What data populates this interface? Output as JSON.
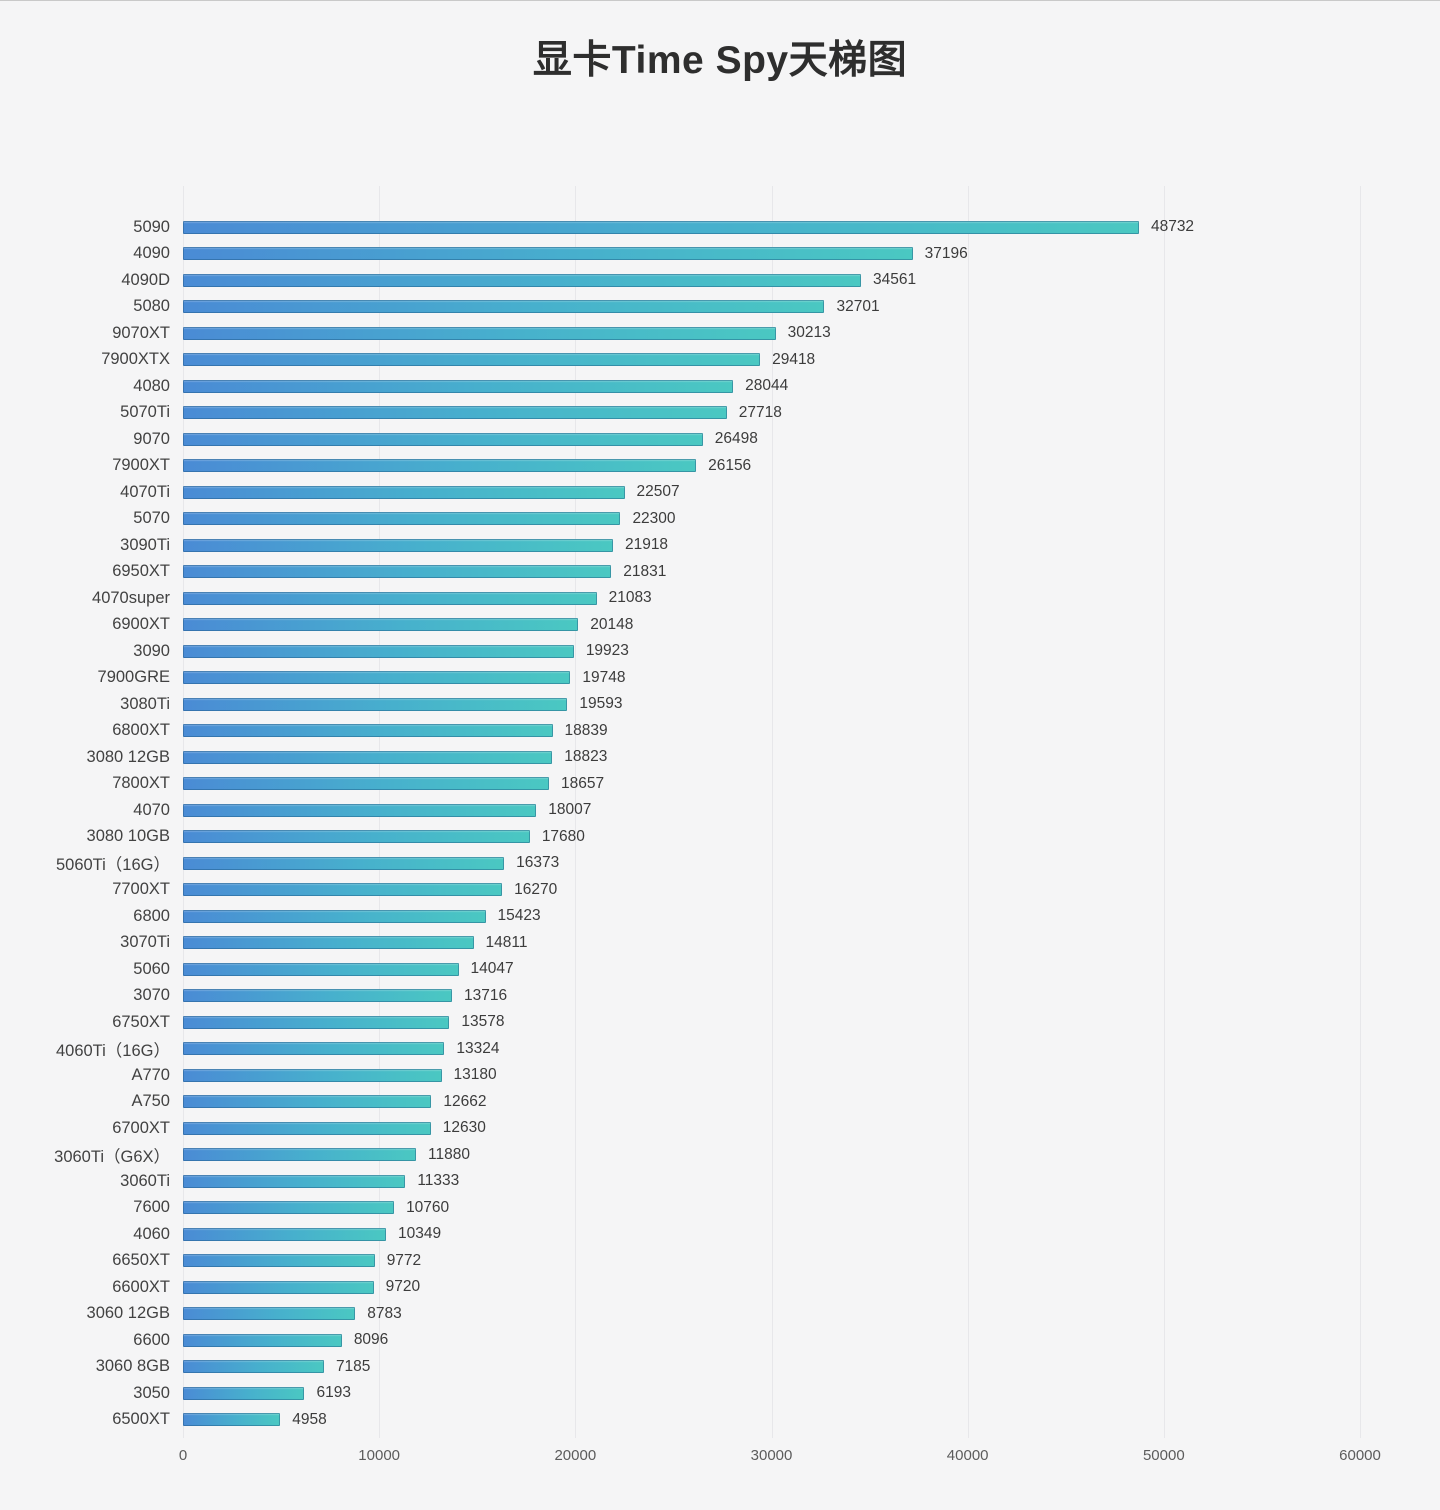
{
  "chart_data": {
    "type": "bar",
    "orientation": "horizontal",
    "title": "显卡Time Spy天梯图",
    "categories": [
      "5090",
      "4090",
      "4090D",
      "5080",
      "9070XT",
      "7900XTX",
      "4080",
      "5070Ti",
      "9070",
      "7900XT",
      "4070Ti",
      "5070",
      "3090Ti",
      "6950XT",
      "4070super",
      "6900XT",
      "3090",
      "7900GRE",
      "3080Ti",
      "6800XT",
      "3080 12GB",
      "7800XT",
      "4070",
      "3080 10GB",
      "5060Ti（16G）",
      "7700XT",
      "6800",
      "3070Ti",
      "5060",
      "3070",
      "6750XT",
      "4060Ti（16G）",
      "A770",
      "A750",
      "6700XT",
      "3060Ti（G6X）",
      "3060Ti",
      "7600",
      "4060",
      "6650XT",
      "6600XT",
      "3060 12GB",
      "6600",
      "3060 8GB",
      "3050",
      "6500XT"
    ],
    "values": [
      48732,
      37196,
      34561,
      32701,
      30213,
      29418,
      28044,
      27718,
      26498,
      26156,
      22507,
      22300,
      21918,
      21831,
      21083,
      20148,
      19923,
      19748,
      19593,
      18839,
      18823,
      18657,
      18007,
      17680,
      16373,
      16270,
      15423,
      14811,
      14047,
      13716,
      13578,
      13324,
      13180,
      12662,
      12630,
      11880,
      11333,
      10760,
      10349,
      9772,
      9720,
      8783,
      8096,
      7185,
      6193,
      4958
    ],
    "xlabel": "",
    "ylabel": "",
    "xlim": [
      0,
      60000
    ],
    "x_ticks": [
      0,
      10000,
      20000,
      30000,
      40000,
      50000,
      60000
    ],
    "grid": "vertical-only",
    "legend": "none",
    "bar_gradient_start": "#4a8bd5",
    "bar_gradient_end": "#4ac8c2",
    "background_color": "#f5f5f6",
    "gridline_color": "#e7e7ea"
  }
}
